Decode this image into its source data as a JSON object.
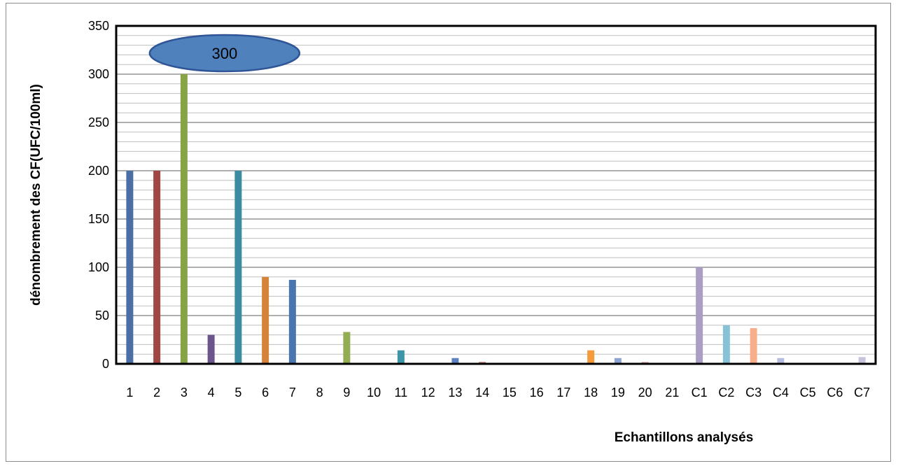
{
  "chart_data": {
    "type": "bar",
    "categories": [
      "1",
      "2",
      "3",
      "4",
      "5",
      "6",
      "7",
      "8",
      "9",
      "10",
      "11",
      "12",
      "13",
      "14",
      "15",
      "16",
      "17",
      "18",
      "19",
      "20",
      "21",
      "C1",
      "C2",
      "C3",
      "C4",
      "C5",
      "C6",
      "C7"
    ],
    "values": [
      200,
      200,
      300,
      30,
      200,
      90,
      87,
      1,
      33,
      1,
      14,
      0,
      6,
      2,
      0,
      0,
      0,
      14,
      6,
      2,
      0,
      100,
      40,
      37,
      6,
      0,
      0,
      7
    ],
    "colors": [
      "#4a6fa5",
      "#a04643",
      "#86a446",
      "#6b558c",
      "#3b8ca0",
      "#d5823a",
      "#4a76b0",
      "#a8a8a8",
      "#93ad55",
      "#b3b3b3",
      "#3f95a8",
      "#c8c8c8",
      "#5d82c0",
      "#c88070",
      "#c8c8c8",
      "#c8c8c8",
      "#c8c8c8",
      "#f59b3c",
      "#8fa3d2",
      "#d9a9a3",
      "#c8c8c8",
      "#aa9ec4",
      "#87c3d8",
      "#f8ae8a",
      "#b7bde0",
      "#c8c8c8",
      "#c8c8c8",
      "#c7c3dc"
    ],
    "title": "",
    "xlabel": "Echantillons analysés",
    "ylabel": "dénombrement des CF(UFC/100ml)",
    "ylim": [
      0,
      350
    ],
    "yticks": [
      "0",
      "50",
      "100",
      "150",
      "200",
      "250",
      "300",
      "350"
    ],
    "grid": true,
    "annotation": {
      "text": "300",
      "category": "3",
      "color": "#4f81bd"
    }
  }
}
